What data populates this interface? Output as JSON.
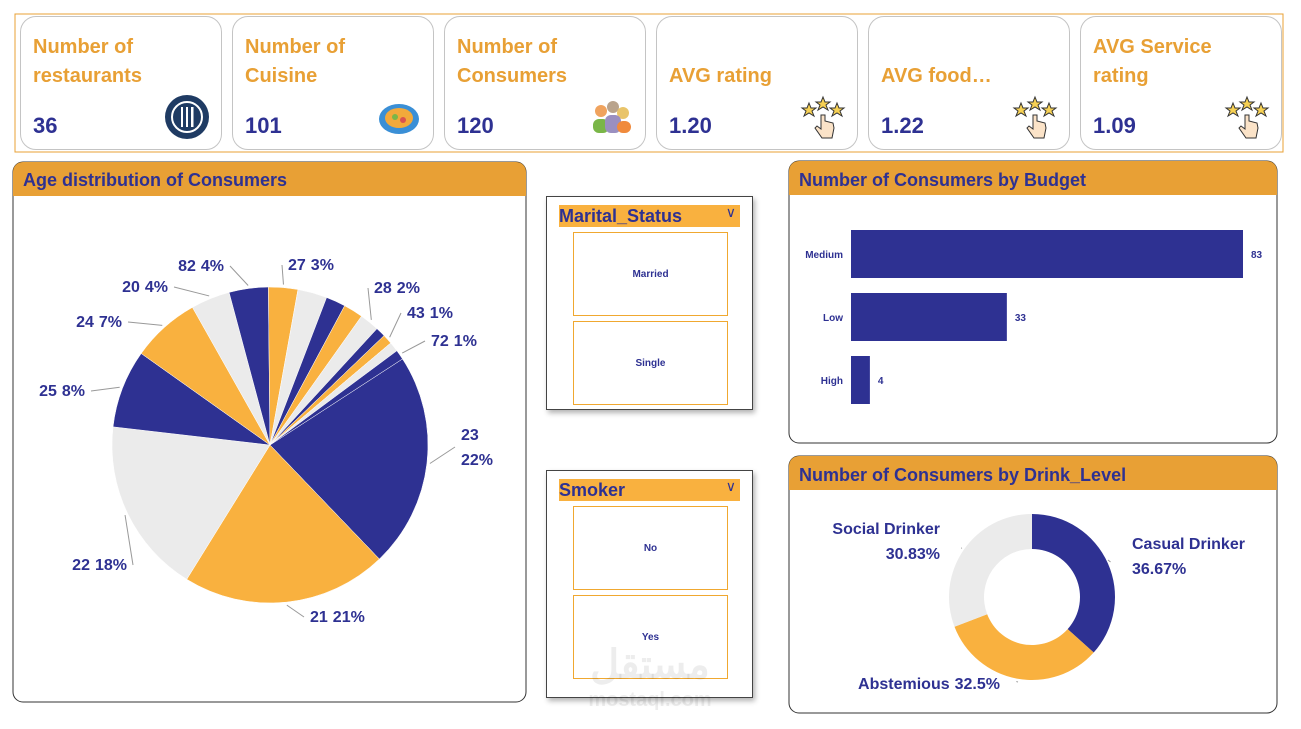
{
  "cards": [
    {
      "title": "Number of restaurants",
      "value": "36"
    },
    {
      "title": "Number of Cuisine",
      "value": "101"
    },
    {
      "title": "Number of Consumers",
      "value": "120"
    },
    {
      "title": "AVG rating",
      "value": "1.20"
    },
    {
      "title": "AVG food…",
      "value": "1.22"
    },
    {
      "title": "AVG Service rating",
      "value": "1.09"
    }
  ],
  "slicers": [
    {
      "title": "Marital_Status",
      "items": [
        "Married",
        "Single"
      ]
    },
    {
      "title": "Smoker",
      "items": [
        "No",
        "Yes"
      ]
    }
  ],
  "chart_data": [
    {
      "type": "pie",
      "title": "Age distribution of Consumers",
      "categories": [
        "23",
        "21",
        "22",
        "25",
        "24",
        "20",
        "82",
        "27",
        null,
        null,
        null,
        "28",
        null,
        "43",
        null,
        "72"
      ],
      "values": [
        22,
        21,
        18,
        8,
        7,
        4,
        4,
        3,
        3,
        2,
        2,
        2,
        1,
        1,
        1,
        1
      ],
      "value_labels": [
        "22%",
        "21%",
        "18%",
        "8%",
        "7%",
        "4%",
        "4%",
        "3%",
        null,
        null,
        null,
        "2%",
        null,
        "1%",
        null,
        "1%"
      ],
      "colors": [
        "#2e3192",
        "#f9b13f",
        "#ebebeb"
      ]
    },
    {
      "type": "bar",
      "orientation": "horizontal",
      "title": "Number of Consumers by Budget",
      "categories": [
        "Medium",
        "Low",
        "High"
      ],
      "values": [
        83,
        33,
        4
      ],
      "color": "#2e3192"
    },
    {
      "type": "donut",
      "title": "Number of Consumers by Drink_Level",
      "categories": [
        "Casual Drinker",
        "Abstemious",
        "Social Drinker"
      ],
      "values": [
        36.67,
        32.5,
        30.83
      ],
      "value_labels": [
        "36.67%",
        "32.5%",
        "30.83%"
      ],
      "colors": [
        "#2e3192",
        "#f9b13f",
        "#ebebeb"
      ]
    }
  ],
  "watermark": [
    "مستقل",
    "mostaql.com"
  ]
}
